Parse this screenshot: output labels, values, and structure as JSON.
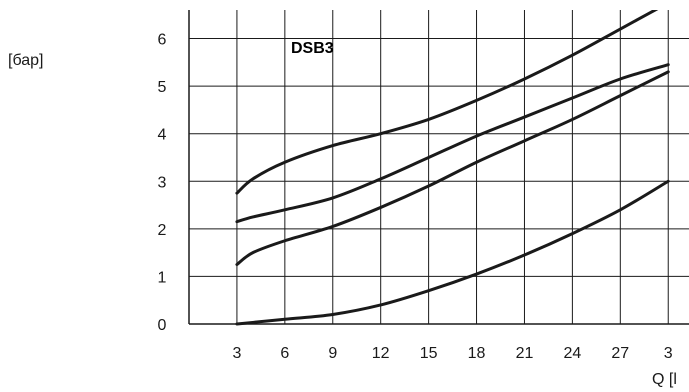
{
  "chart_data": {
    "type": "line",
    "title": "DSB3",
    "ylabel": "[бар]",
    "xlabel": "Q [l",
    "x_ticks": [
      "3",
      "6",
      "9",
      "12",
      "15",
      "18",
      "21",
      "24",
      "27",
      "3"
    ],
    "y_ticks": [
      "0",
      "1",
      "2",
      "3",
      "4",
      "5",
      "6"
    ],
    "xlim": [
      0,
      30
    ],
    "ylim": [
      0,
      6.6
    ],
    "grid": true,
    "line_color": "#1a1a1a",
    "series": [
      {
        "x": [
          3,
          4,
          6,
          9,
          12,
          15,
          18,
          21,
          24,
          27,
          30
        ],
        "y": [
          2.75,
          3.05,
          3.4,
          3.75,
          4.0,
          4.3,
          4.7,
          5.15,
          5.65,
          6.2,
          6.75
        ]
      },
      {
        "x": [
          3,
          4,
          6,
          9,
          12,
          15,
          18,
          21,
          24,
          27,
          30
        ],
        "y": [
          2.15,
          2.25,
          2.4,
          2.65,
          3.05,
          3.5,
          3.95,
          4.35,
          4.75,
          5.15,
          5.45
        ]
      },
      {
        "x": [
          3,
          4,
          6,
          9,
          12,
          15,
          18,
          21,
          24,
          27,
          30
        ],
        "y": [
          1.25,
          1.5,
          1.75,
          2.05,
          2.45,
          2.9,
          3.4,
          3.85,
          4.3,
          4.8,
          5.3
        ]
      },
      {
        "x": [
          3,
          6,
          9,
          12,
          15,
          18,
          21,
          24,
          27,
          30
        ],
        "y": [
          0.0,
          0.1,
          0.2,
          0.4,
          0.7,
          1.05,
          1.45,
          1.9,
          2.4,
          3.0
        ]
      }
    ]
  }
}
